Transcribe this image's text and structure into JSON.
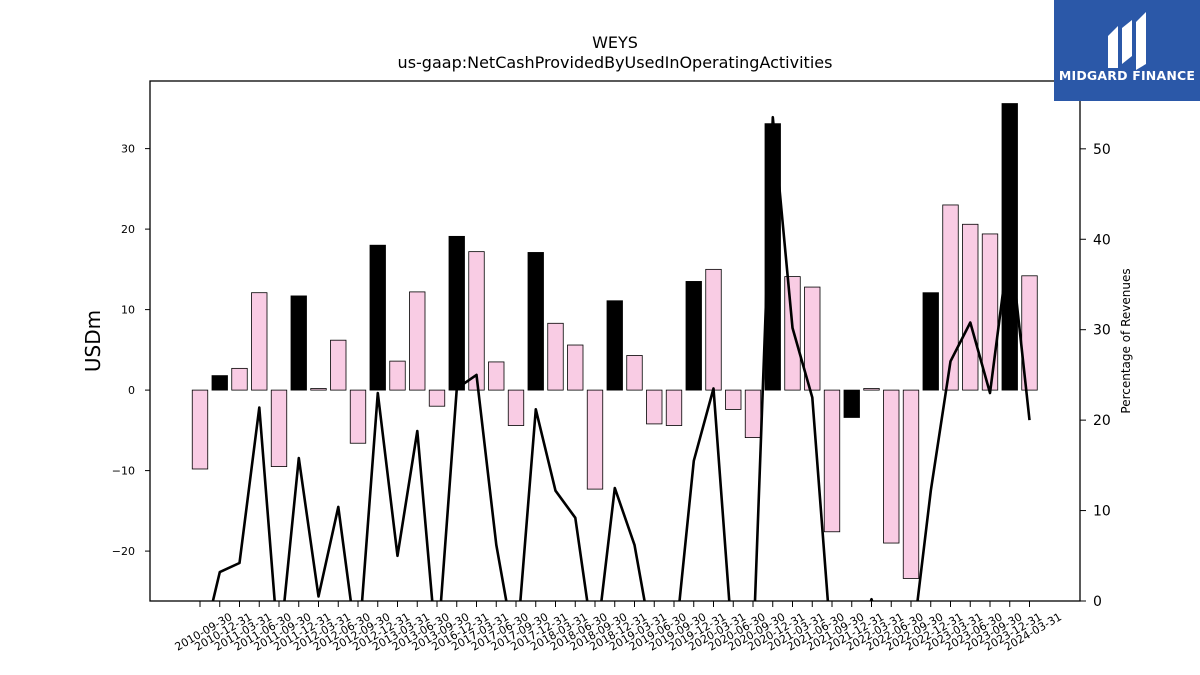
{
  "chart_data": {
    "type": "bar+line",
    "title": "WEYS",
    "subtitle": "us-gaap:NetCashProvidedByUsedInOperatingActivities",
    "ylabel": "USDm",
    "y2label": "Percentage of Revenues",
    "ylim": [
      -26.2,
      38.4
    ],
    "y2lim": [
      0,
      57.5
    ],
    "yticks": [
      -20,
      -10,
      0,
      10,
      20,
      30
    ],
    "y2ticks": [
      0,
      10,
      20,
      30,
      40,
      50
    ],
    "categories": [
      "2010-09-30",
      "2010-12-31",
      "2011-03-31",
      "2011-06-30",
      "2011-09-30",
      "2011-12-31",
      "2012-03-31",
      "2012-06-30",
      "2012-09-30",
      "2012-12-31",
      "2013-03-31",
      "2013-06-30",
      "2013-09-30",
      "2016-12-31",
      "2017-03-31",
      "2017-06-30",
      "2017-09-30",
      "2017-12-31",
      "2018-03-31",
      "2018-06-30",
      "2018-09-30",
      "2018-12-31",
      "2019-03-31",
      "2019-06-30",
      "2019-09-30",
      "2019-12-31",
      "2020-03-31",
      "2020-06-30",
      "2020-09-30",
      "2020-12-31",
      "2021-03-31",
      "2021-06-30",
      "2021-09-30",
      "2021-12-31",
      "2022-03-31",
      "2022-06-30",
      "2022-09-30",
      "2022-12-31",
      "2023-03-31",
      "2023-06-30",
      "2023-09-30",
      "2023-12-31",
      "2024-03-31"
    ],
    "series": [
      {
        "values": [
          -9.8,
          1.8,
          2.7,
          12.1,
          -9.5,
          11.7,
          0.2,
          6.2,
          -6.6,
          18.0,
          3.6,
          12.2,
          -2.0,
          19.1,
          17.2,
          3.5,
          -4.4,
          17.1,
          8.3,
          5.6,
          -12.3,
          11.1,
          4.3,
          -4.2,
          -4.4,
          13.5,
          15.0,
          -2.4,
          -5.9,
          33.1,
          14.1,
          12.8,
          -17.6,
          -3.4,
          0.2,
          -19.0,
          -23.4,
          12.1,
          23.0,
          20.6,
          19.4,
          35.6,
          14.2
        ],
        "highlight": [
          false,
          true,
          false,
          false,
          false,
          true,
          false,
          false,
          false,
          true,
          false,
          false,
          false,
          true,
          false,
          false,
          false,
          true,
          false,
          false,
          false,
          true,
          false,
          false,
          false,
          true,
          false,
          false,
          false,
          true,
          false,
          false,
          false,
          true,
          false,
          false,
          false,
          true,
          false,
          false,
          false,
          true,
          false
        ]
      },
      {
        "values": [
          null,
          3.2,
          4.2,
          21.4,
          null,
          15.8,
          0.5,
          10.4,
          null,
          23.0,
          5.0,
          18.8,
          null,
          23.5,
          25.0,
          6.2,
          null,
          21.2,
          12.2,
          9.2,
          null,
          12.5,
          6.2,
          null,
          null,
          15.5,
          23.5,
          null,
          null,
          53.5,
          30.2,
          22.5,
          null,
          null,
          0.2,
          null,
          null,
          12.2,
          26.5,
          30.8,
          23.0,
          40.0,
          20.0
        ]
      }
    ],
    "colors": {
      "bar_fill": "#f9cce4",
      "bar_highlight": "#000000",
      "bar_edge": "#000000",
      "line": "#000000"
    }
  },
  "logo": {
    "text": "MIDGARD FINANCE",
    "background": "#2b58a8",
    "icon": "midgard-logo-icon"
  }
}
